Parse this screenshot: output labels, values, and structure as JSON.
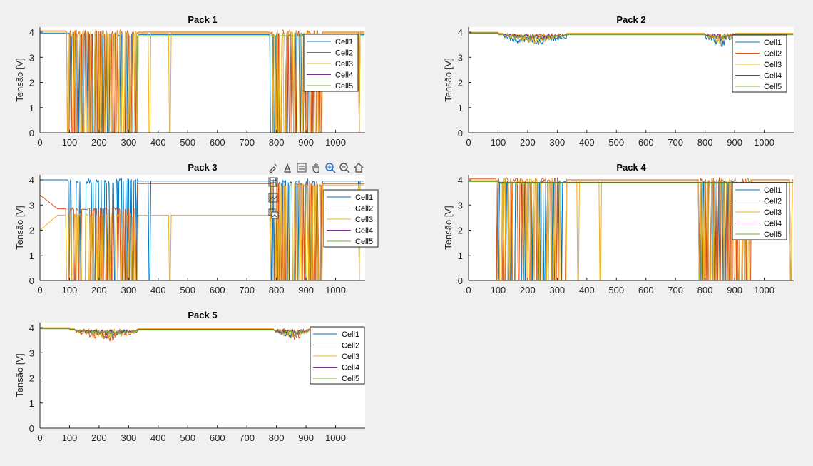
{
  "figure": {
    "background": "#f0f0f0"
  },
  "series_colors": [
    "#0072BD",
    "#D95319",
    "#EDB120",
    "#7E2F8E",
    "#77AC30"
  ],
  "toolbar": {
    "icons": [
      "brush-icon",
      "data-tips-icon",
      "legend-toggle-icon",
      "pan-hand-icon",
      "zoom-in-icon",
      "zoom-out-icon",
      "home-restore-icon",
      "save-icon",
      "copy-figure-icon",
      "copy-image-icon"
    ]
  },
  "chart_data": [
    {
      "type": "line",
      "title": "Pack 1",
      "ylabel": "Tensão [V]",
      "xlim": [
        0,
        1100
      ],
      "ylim": [
        0,
        4.2
      ],
      "xticks": [
        0,
        100,
        200,
        300,
        400,
        500,
        600,
        700,
        800,
        900,
        1000
      ],
      "yticks": [
        0,
        1,
        2,
        3,
        4
      ],
      "legend_position": "top-right",
      "series": [
        {
          "name": "Cell1",
          "profile": {
            "base": 3.9,
            "noise": 0.06,
            "drops": [
              [
                95,
                330,
                0.45,
                0
              ],
              [
                780,
                955,
                0.4,
                0
              ]
            ],
            "extra_drops": [
              1080
            ]
          }
        },
        {
          "name": "Cell2",
          "profile": {
            "base": 4.0,
            "noise": 0.1,
            "drops": [
              [
                90,
                330,
                0.5,
                0
              ],
              [
                780,
                955,
                0.5,
                0
              ]
            ],
            "extra_drops": [
              1080
            ]
          }
        },
        {
          "name": "Cell3",
          "profile": {
            "base": 3.95,
            "noise": 0.12,
            "drops": [
              [
                90,
                330,
                0.5,
                0
              ],
              [
                780,
                955,
                0.5,
                0
              ]
            ],
            "extra_drops": [
              370,
              440,
              1080
            ]
          }
        },
        {
          "name": "Cell4",
          "profile": {
            "base": 0.0,
            "noise": 0.0,
            "drops": []
          }
        },
        {
          "name": "Cell5",
          "profile": {
            "base": 0.0,
            "noise": 0.0,
            "drops": [],
            "step_at": [
              330,
              3.85
            ]
          }
        }
      ]
    },
    {
      "type": "line",
      "title": "Pack 2",
      "ylabel": "Tensão [V]",
      "xlim": [
        0,
        1100
      ],
      "ylim": [
        0,
        4.2
      ],
      "xticks": [
        0,
        100,
        200,
        300,
        400,
        500,
        600,
        700,
        800,
        900,
        1000
      ],
      "yticks": [
        0,
        1,
        2,
        3,
        4
      ],
      "legend_position": "top-right",
      "series": [
        {
          "name": "Cell1",
          "profile": {
            "base": 3.9,
            "noise": 0.25,
            "dip_regions": [
              [
                120,
                330
              ],
              [
                800,
                900
              ]
            ]
          }
        },
        {
          "name": "Cell2",
          "profile": {
            "base": 3.95,
            "noise": 0.15,
            "dip_regions": [
              [
                120,
                330
              ],
              [
                800,
                900
              ]
            ]
          }
        },
        {
          "name": "Cell3",
          "profile": {
            "base": 3.95,
            "noise": 0.2,
            "dip_regions": [
              [
                120,
                330
              ],
              [
                800,
                900
              ]
            ]
          }
        },
        {
          "name": "Cell4",
          "profile": {
            "base": 3.92,
            "noise": 0.1,
            "dip_regions": [
              [
                120,
                330
              ],
              [
                800,
                900
              ]
            ]
          }
        },
        {
          "name": "Cell5",
          "profile": {
            "base": 3.9,
            "noise": 0.1,
            "dip_regions": [
              [
                120,
                330
              ],
              [
                800,
                900
              ]
            ]
          }
        }
      ]
    },
    {
      "type": "line",
      "title": "Pack 3",
      "ylabel": "Tensão [V]",
      "xlim": [
        0,
        1100
      ],
      "ylim": [
        0,
        4.2
      ],
      "xticks": [
        0,
        100,
        200,
        300,
        400,
        500,
        600,
        700,
        800,
        900,
        1000
      ],
      "yticks": [
        0,
        1,
        2,
        3,
        4
      ],
      "legend_position": "top-right",
      "series": [
        {
          "name": "Cell1",
          "profile": {
            "base": 3.95,
            "noise": 0.1,
            "drops": [
              [
                95,
                330,
                0.5,
                0
              ],
              [
                780,
                955,
                0.5,
                0
              ]
            ],
            "extra_drops": [
              370,
              1080
            ]
          }
        },
        {
          "name": "Cell2",
          "profile": {
            "base": 2.85,
            "noise": 0.05,
            "drops": [
              [
                90,
                330,
                0.4,
                0
              ],
              [
                780,
                955,
                0.45,
                0
              ]
            ],
            "start": 3.4,
            "step_at": [
              330,
              3.85
            ]
          }
        },
        {
          "name": "Cell3",
          "profile": {
            "base": 2.6,
            "noise": 0.05,
            "drops": [
              [
                90,
                330,
                0.45,
                0
              ],
              [
                780,
                955,
                0.45,
                0
              ]
            ],
            "start": 2.0,
            "step_at": [
              780,
              3.8
            ],
            "extra_drops": [
              440,
              1080
            ]
          }
        },
        {
          "name": "Cell4",
          "profile": {
            "base": 0.0,
            "noise": 0.0,
            "drops": []
          }
        },
        {
          "name": "Cell5",
          "profile": {
            "base": 0.0,
            "noise": 0.0,
            "drops": []
          }
        }
      ]
    },
    {
      "type": "line",
      "title": "Pack 4",
      "ylabel": "Tensão [V]",
      "xlim": [
        0,
        1100
      ],
      "ylim": [
        0,
        4.2
      ],
      "xticks": [
        0,
        100,
        200,
        300,
        400,
        500,
        600,
        700,
        800,
        900,
        1000
      ],
      "yticks": [
        0,
        1,
        2,
        3,
        4
      ],
      "legend_position": "top-right",
      "series": [
        {
          "name": "Cell1",
          "profile": {
            "base": 3.9,
            "noise": 0.05,
            "drops": [
              [
                95,
                330,
                0.5,
                0
              ],
              [
                780,
                955,
                0.45,
                0
              ]
            ],
            "extra_drops": [
              1090
            ]
          }
        },
        {
          "name": "Cell2",
          "profile": {
            "base": 4.0,
            "noise": 0.1,
            "drops": [
              [
                95,
                330,
                0.5,
                0
              ],
              [
                780,
                955,
                0.5,
                0
              ]
            ],
            "extra_drops": [
              1090
            ]
          }
        },
        {
          "name": "Cell3",
          "profile": {
            "base": 3.95,
            "noise": 0.12,
            "drops": [
              [
                95,
                330,
                0.5,
                0
              ],
              [
                780,
                955,
                0.5,
                0
              ]
            ],
            "extra_drops": [
              370,
              445,
              1090
            ]
          }
        },
        {
          "name": "Cell4",
          "profile": {
            "base": 3.9,
            "noise": 0.05,
            "drops": []
          }
        },
        {
          "name": "Cell5",
          "profile": {
            "base": 3.88,
            "noise": 0.05,
            "drops": []
          }
        }
      ]
    },
    {
      "type": "line",
      "title": "Pack 5",
      "ylabel": "Tensão [V]",
      "xlim": [
        0,
        1100
      ],
      "ylim": [
        0,
        4.2
      ],
      "xticks": [
        0,
        100,
        200,
        300,
        400,
        500,
        600,
        700,
        800,
        900,
        1000
      ],
      "yticks": [
        0,
        1,
        2,
        3,
        4
      ],
      "legend_position": "top-right",
      "series": [
        {
          "name": "Cell1",
          "profile": {
            "base": 3.92,
            "noise": 0.15,
            "dip_regions": [
              [
                120,
                330
              ],
              [
                790,
                910
              ]
            ]
          }
        },
        {
          "name": "Cell2",
          "profile": {
            "base": 3.95,
            "noise": 0.25,
            "dip_regions": [
              [
                120,
                330
              ],
              [
                790,
                910
              ]
            ]
          }
        },
        {
          "name": "Cell3",
          "profile": {
            "base": 3.95,
            "noise": 0.2,
            "dip_regions": [
              [
                120,
                330
              ],
              [
                790,
                910
              ]
            ]
          }
        },
        {
          "name": "Cell4",
          "profile": {
            "base": 3.92,
            "noise": 0.1,
            "dip_regions": [
              [
                120,
                330
              ],
              [
                790,
                910
              ]
            ]
          }
        },
        {
          "name": "Cell5",
          "profile": {
            "base": 3.9,
            "noise": 0.1,
            "dip_regions": [
              [
                120,
                330
              ],
              [
                790,
                910
              ]
            ]
          }
        }
      ]
    }
  ]
}
